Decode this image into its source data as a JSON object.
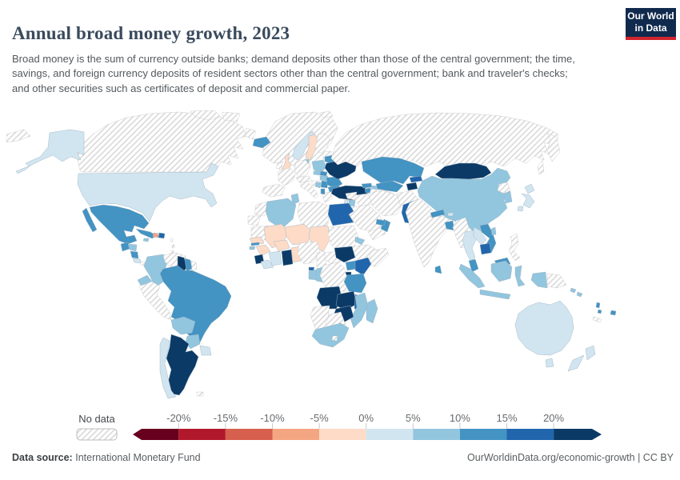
{
  "header": {
    "title": "Annual broad money growth, 2023",
    "subtitle": "Broad money is the sum of currency outside banks; demand deposits other than those of the central government; the time, savings, and foreign currency deposits of resident sectors other than the central government; bank and traveler's checks; and other securities such as certificates of deposit and commercial paper.",
    "logo": {
      "line1": "Our World",
      "line2": "in Data",
      "bg_color": "#102a4e",
      "accent_color": "#d0252e"
    }
  },
  "legend": {
    "no_data_label": "No data",
    "tick_labels": [
      "-20%",
      "-15%",
      "-10%",
      "-5%",
      "0%",
      "5%",
      "10%",
      "15%",
      "20%"
    ],
    "colors": [
      "#67001f",
      "#b2182b",
      "#d6604d",
      "#f4a582",
      "#fddbc7",
      "#d1e5f0",
      "#92c5de",
      "#4393c3",
      "#2166ac",
      "#0b3a67"
    ]
  },
  "footer": {
    "source_label": "Data source:",
    "source": "International Monetary Fund",
    "link": "OurWorldinData.org/economic-growth",
    "separator": " | ",
    "license": "CC BY"
  },
  "chart_data": {
    "type": "heatmap",
    "subtype": "choropleth-world-map",
    "title": "Annual broad money growth, 2023",
    "year": 2023,
    "unit": "%",
    "source": "International Monetary Fund",
    "legend_position": "bottom",
    "bin_labels": [
      "less than -20%",
      "-20% to -15%",
      "-15% to -10%",
      "-10% to -5%",
      "-5% to 0%",
      "0% to 5%",
      "5% to 10%",
      "10% to 15%",
      "15% to 20%",
      "more than 20%"
    ],
    "no_data_label": "No data",
    "countries": {
      "United States": 5,
      "Mexico": 7,
      "Guatemala": 7,
      "Honduras": 6,
      "Nicaragua": 7,
      "Costa Rica": 5,
      "Cuba": 7,
      "Haiti": 3,
      "Dominican Republic": 8,
      "Jamaica": 6,
      "Colombia": 6,
      "Ecuador": 6,
      "Guyana": 9,
      "Suriname": 7,
      "Brazil": 7,
      "Bolivia": 6,
      "Paraguay": 6,
      "Uruguay": 5,
      "Chile": 5,
      "Argentina": 9,
      "Iceland": 7,
      "United Kingdom": 4,
      "Norway": 5,
      "Sweden": 4,
      "Denmark": 6,
      "Poland": 6,
      "Czechia": 6,
      "Slovakia": 7,
      "Hungary": 6,
      "Serbia": 7,
      "Albania": 7,
      "Bosnia and Herzegovina": 6,
      "Romania": 7,
      "Bulgaria": 7,
      "Belarus": 7,
      "Ukraine": 9,
      "Turkey": 9,
      "Georgia": 7,
      "Armenia": 7,
      "Azerbaijan": 6,
      "Algeria": 6,
      "Tunisia": 6,
      "Egypt": 8,
      "Senegal": 4,
      "Gambia": 7,
      "Guinea-Bissau": 6,
      "Guinea": 4,
      "Sierra Leone": 9,
      "Liberia": 5,
      "Ivory Coast": 5,
      "Mali": 4,
      "Burkina Faso": 4,
      "Ghana": 9,
      "Togo and Benin": 4,
      "Niger": 4,
      "Chad": 4,
      "Eritrea": 6,
      "South Sudan": 9,
      "Uganda": 7,
      "Kenya": 8,
      "Rwanda": 9,
      "Burundi": 9,
      "Tanzania": 7,
      "Equatorial Guinea": 8,
      "Gabon": 6,
      "Congo": 6,
      "Angola": 9,
      "Zambia": 9,
      "Malawi": 8,
      "Mozambique": 6,
      "Zimbabwe": 9,
      "South Africa": 6,
      "Madagascar": 6,
      "Israel": 5,
      "Jordan": 6,
      "United Arab Emirates": 7,
      "Oman": 7,
      "Kazakhstan": 7,
      "Uzbekistan": 7,
      "Kyrgyzstan": 8,
      "Tajikistan": 9,
      "Mongolia": 9,
      "Pakistan": 8,
      "Nepal": 7,
      "Bhutan": 5,
      "Bangladesh": 7,
      "Sri Lanka": 7,
      "China": 6,
      "South Korea": 6,
      "Japan": 5,
      "Taiwan": 6,
      "Thailand": 5,
      "Laos": 5,
      "Vietnam": 7,
      "Cambodia": 8,
      "Malaysia": 7,
      "Indonesia": 6,
      "Australia": 5,
      "New Zealand": 5,
      "Fiji": 7,
      "Vanuatu": 7,
      "Solomon Islands": 6
    },
    "no_data_countries": [
      "Canada",
      "Greenland",
      "Russia",
      "Svalbard",
      "Ireland",
      "Finland",
      "Baltic states",
      "France",
      "Spain",
      "Portugal",
      "Germany",
      "Italy",
      "Austria",
      "Switzerland",
      "Greece",
      "Croatia",
      "Panama",
      "Venezuela",
      "French Guiana",
      "Peru",
      "Falkland Islands",
      "Lesser Antilles",
      "Morocco",
      "Western Sahara",
      "Mauritania",
      "Libya",
      "Nigeria",
      "Cameroon",
      "Central African Republic",
      "Sudan",
      "Ethiopia",
      "Somalia",
      "Democratic Republic of Congo",
      "Namibia",
      "Botswana",
      "Lesotho",
      "Syria",
      "Iraq",
      "Saudi Arabia",
      "Yemen",
      "Iran",
      "Turkmenistan",
      "Afghanistan",
      "India",
      "Myanmar",
      "North Korea",
      "Philippines",
      "Papua New Guinea",
      "New Caledonia"
    ]
  }
}
